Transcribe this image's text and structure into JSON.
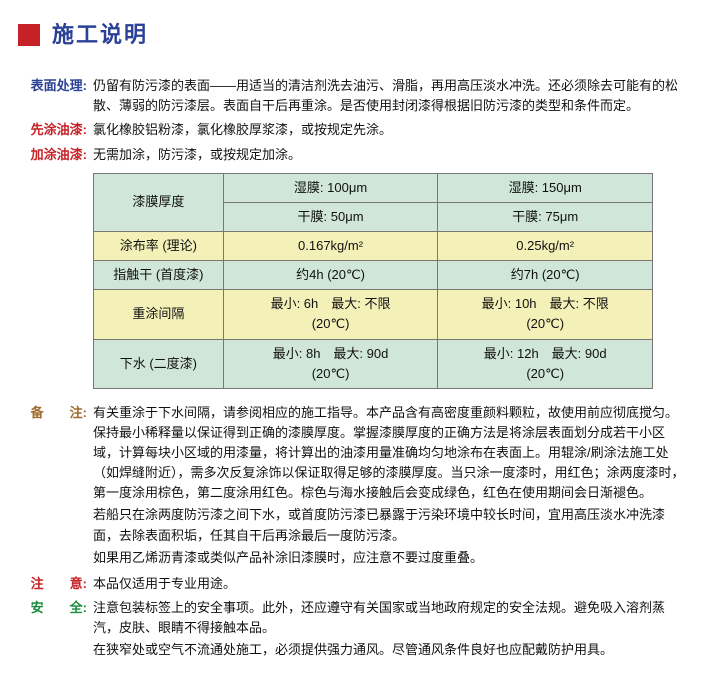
{
  "colors": {
    "accent_red": "#c62126",
    "accent_blue": "#2a4196",
    "accent_green": "#1a8a3c",
    "accent_brown": "#a06a2c",
    "table_header_bg": "#cfe6d8",
    "table_alt_bg": "#f3f0b8",
    "border": "#777",
    "background": "#ffffff"
  },
  "title": "施工说明",
  "sections": {
    "surface": {
      "label": "表面处理:",
      "text": "仍留有防污漆的表面——用适当的清洁剂洗去油污、滑脂，再用高压淡水冲洗。还必须除去可能有的松散、薄弱的防污漆层。表面自干后再重涂。是否使用封闭漆得根据旧防污漆的类型和条件而定。"
    },
    "primer": {
      "label": "先涂油漆:",
      "text": "氯化橡胶铝粉漆，氯化橡胶厚浆漆，或按规定先涂。"
    },
    "topcoat": {
      "label": "加涂油漆:",
      "text": "无需加涂，防污漆，或按规定加涂。"
    }
  },
  "table": {
    "rows": [
      {
        "class": "bg-green",
        "th": "漆膜厚度",
        "c1": "湿膜: 100μm",
        "c2": "湿膜: 150μm",
        "rowspan_th": 2
      },
      {
        "class": "bg-green",
        "th": "",
        "c1": "干膜: 50μm",
        "c2": "干膜: 75μm"
      },
      {
        "class": "bg-yellow",
        "th": "涂布率 (理论)",
        "c1": "0.167kg/m²",
        "c2": "0.25kg/m²"
      },
      {
        "class": "bg-green",
        "th": "指触干 (首度漆)",
        "c1": "约4h (20℃)",
        "c2": "约7h (20℃)"
      },
      {
        "class": "bg-yellow",
        "th": "重涂间隔",
        "c1": "最小: 6h　最大: 不限\n(20℃)",
        "c2": "最小: 10h　最大: 不限\n(20℃)"
      },
      {
        "class": "bg-green",
        "th": "下水 (二度漆)",
        "c1": "最小: 8h　最大: 90d\n(20℃)",
        "c2": "最小: 12h　最大: 90d\n(20℃)"
      }
    ],
    "col_widths": [
      "130px",
      "215px",
      "215px"
    ]
  },
  "remarks": {
    "label": "备　　注:",
    "paras": [
      "有关重涂于下水间隔，请参阅相应的施工指导。本产品含有高密度重颜料颗粒，故使用前应彻底搅匀。保持最小稀释量以保证得到正确的漆膜厚度。掌握漆膜厚度的正确方法是将涂层表面划分成若干小区域，计算每块小区域的用漆量，将计算出的油漆用量准确均匀地涂布在表面上。用辊涂/刷涂法施工处（如焊缝附近），需多次反复涂饰以保证取得足够的漆膜厚度。当只涂一度漆时，用红色；涂两度漆时，第一度涂用棕色，第二度涂用红色。棕色与海水接触后会变成绿色，红色在使用期间会日渐褪色。",
      "若船只在涂两度防污漆之间下水，或首度防污漆已暴露于污染环境中较长时间，宜用高压淡水冲洗漆面，去除表面积垢，任其自干后再涂最后一度防污漆。",
      "如果用乙烯沥青漆或类似产品补涂旧漆膜时，应注意不要过度重叠。"
    ]
  },
  "caution": {
    "label": "注　　意:",
    "text": "本品仅适用于专业用途。"
  },
  "safety": {
    "label": "安　　全:",
    "paras": [
      "注意包装标签上的安全事项。此外，还应遵守有关国家或当地政府规定的安全法规。避免吸入溶剂蒸汽，皮肤、眼睛不得接触本品。",
      "在狭窄处或空气不流通处施工，必须提供强力通风。尽管通风条件良好也应配戴防护用具。"
    ]
  }
}
